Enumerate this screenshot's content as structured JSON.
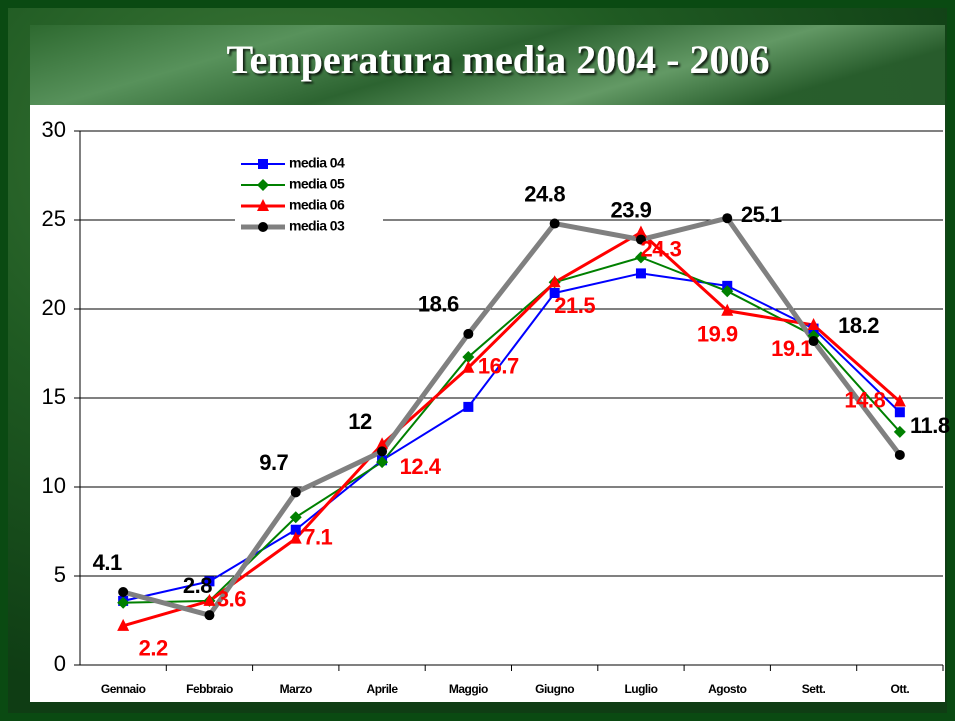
{
  "chart_data": {
    "type": "line",
    "title": "Temperatura media 2004 - 2006",
    "categories": [
      "Gennaio",
      "Febbraio",
      "Marzo",
      "Aprile",
      "Maggio",
      "Giugno",
      "Luglio",
      "Agosto",
      "Sett.",
      "Ott."
    ],
    "series": [
      {
        "name": "media 04",
        "color": "#0000ff",
        "marker": "square",
        "values": [
          3.6,
          4.7,
          7.6,
          11.5,
          14.5,
          20.9,
          22.0,
          21.3,
          18.9,
          14.2
        ]
      },
      {
        "name": "media 05",
        "color": "#008000",
        "marker": "diamond",
        "values": [
          3.5,
          3.6,
          8.3,
          11.4,
          17.3,
          21.5,
          22.9,
          21.0,
          18.5,
          13.1
        ]
      },
      {
        "name": "media 06",
        "color": "#ff0000",
        "marker": "triangle",
        "label_color": "#ff0000",
        "values": [
          2.2,
          3.6,
          7.1,
          12.4,
          16.7,
          21.5,
          24.3,
          19.9,
          19.1,
          14.8
        ]
      },
      {
        "name": "media 03",
        "color": "#808080",
        "marker": "circle",
        "marker_color": "#000000",
        "label_color": "#000000",
        "values": [
          4.1,
          2.8,
          9.7,
          12,
          18.6,
          24.8,
          23.9,
          25.1,
          18.2,
          11.8
        ]
      }
    ],
    "ylim": [
      0,
      30
    ],
    "yticks": [
      0,
      5,
      10,
      15,
      20,
      25,
      30
    ],
    "grid": true,
    "legend": "upper left"
  }
}
